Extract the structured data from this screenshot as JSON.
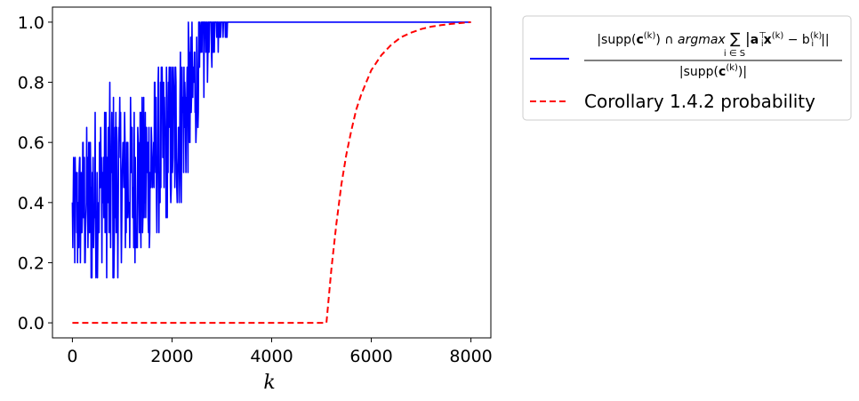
{
  "chart_data": {
    "type": "line",
    "xlabel": "k",
    "ylabel": "",
    "xlim": [
      -400,
      8400
    ],
    "ylim": [
      -0.05,
      1.05
    ],
    "xticks": [
      0,
      2000,
      4000,
      6000,
      8000
    ],
    "xtick_labels": [
      "0",
      "2000",
      "4000",
      "6000",
      "8000"
    ],
    "yticks": [
      0.0,
      0.2,
      0.4,
      0.6,
      0.8,
      1.0
    ],
    "ytick_labels": [
      "0.0",
      "0.2",
      "0.4",
      "0.6",
      "0.8",
      "1.0"
    ],
    "grid": false,
    "legend_position": "outside-top-right",
    "series": [
      {
        "name": "|supp(c^(k)) ∩ argmax Σ_{i∈S} |a_i^T x^(k) − b_i^(k)|| / |supp(c^(k))|",
        "color": "#0000ff",
        "style": "solid",
        "envelope_x": [
          0,
          200,
          400,
          600,
          800,
          1000,
          1200,
          1400,
          1600,
          1800,
          2000,
          2200,
          2400,
          2600,
          2800,
          3000,
          3200,
          3400,
          8000
        ],
        "envelope_low": [
          0.1,
          0.15,
          0.1,
          0.2,
          0.1,
          0.2,
          0.2,
          0.2,
          0.25,
          0.3,
          0.35,
          0.4,
          0.55,
          0.7,
          0.85,
          0.9,
          0.95,
          1.0,
          1.0
        ],
        "envelope_high": [
          0.55,
          0.65,
          0.7,
          0.7,
          0.8,
          0.75,
          0.75,
          0.75,
          0.8,
          0.85,
          0.9,
          0.95,
          1.0,
          1.0,
          1.0,
          1.0,
          1.0,
          1.0,
          1.0
        ]
      },
      {
        "name": "Corollary 1.4.2 probability",
        "color": "#ff0000",
        "style": "dashed",
        "x": [
          0,
          1000,
          2000,
          3000,
          4000,
          5000,
          5100,
          5200,
          5300,
          5400,
          5500,
          5600,
          5700,
          5800,
          5900,
          6000,
          6200,
          6400,
          6600,
          6800,
          7000,
          7200,
          7400,
          7600,
          7800,
          8000
        ],
        "y": [
          0,
          0,
          0,
          0,
          0,
          0,
          0.0,
          0.18,
          0.33,
          0.46,
          0.56,
          0.64,
          0.71,
          0.76,
          0.8,
          0.84,
          0.89,
          0.925,
          0.95,
          0.965,
          0.977,
          0.985,
          0.99,
          0.994,
          0.997,
          1.0
        ]
      }
    ]
  },
  "legend": {
    "item1": {
      "numerator_a": "|supp(",
      "numerator_b": "c",
      "numerator_c": ") ∩ ",
      "numerator_d": "argmax",
      "numerator_e": " ∑ |",
      "numerator_f": "a",
      "numerator_g": "x",
      "numerator_h": " − b",
      "numerator_i": "||",
      "sup_k": "(k)",
      "sup_T": "⊤",
      "sub_i": "i",
      "sub_sum": "i ∈ S",
      "denominator_a": "|supp(",
      "denominator_b": "c",
      "denominator_c": ")|"
    },
    "item2": "Corollary 1.4.2 probability"
  }
}
